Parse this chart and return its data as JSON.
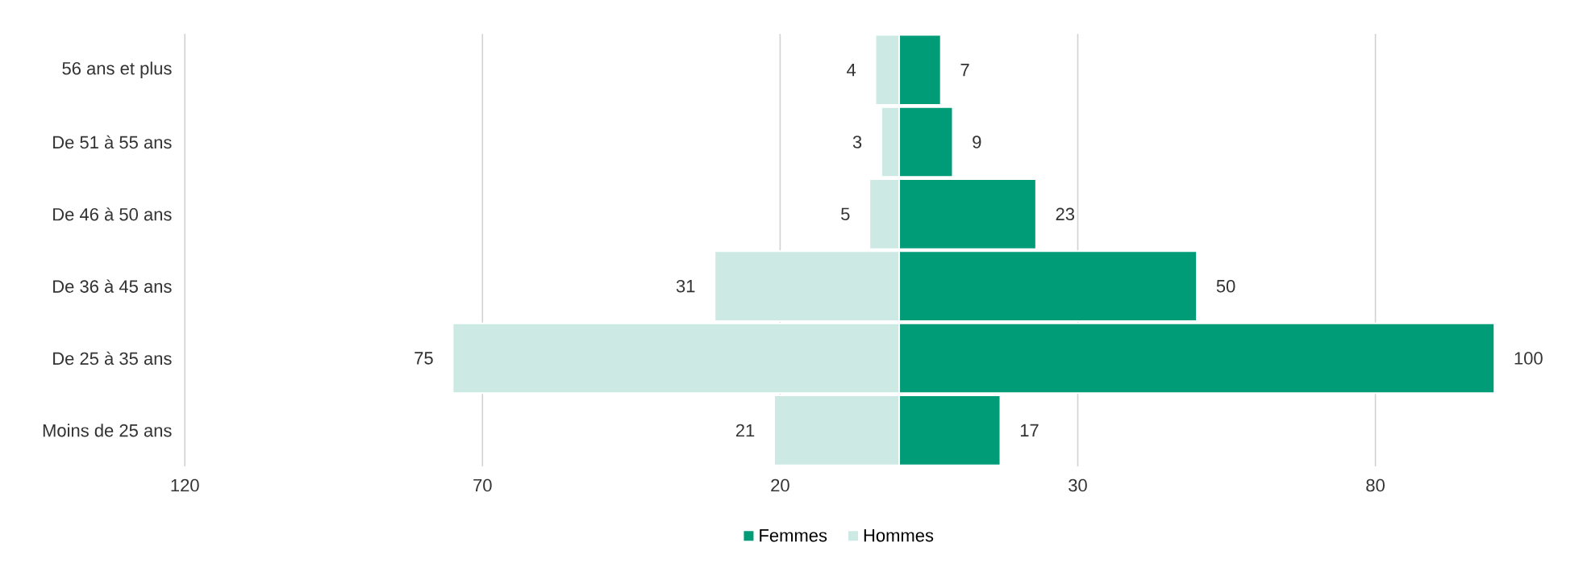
{
  "chart_data": {
    "type": "bar",
    "orientation": "horizontal",
    "categories": [
      "56 ans et plus",
      "De 51 à 55 ans",
      "De 46 à 50 ans",
      "De 36 à 45 ans",
      "De 25 à 35 ans",
      "Moins de 25 ans"
    ],
    "series": [
      {
        "name": "Femmes",
        "color": "#009b77",
        "values": [
          7,
          9,
          23,
          50,
          100,
          17
        ],
        "base": [
          0,
          0,
          0,
          0,
          0,
          0
        ],
        "value_labels": [
          "7",
          "9",
          "23",
          "50",
          "100",
          "17"
        ]
      },
      {
        "name": "Hommes",
        "color": "#cceae3",
        "values": [
          4,
          3,
          5,
          31,
          75,
          21
        ],
        "base": [
          -4,
          -3,
          -5,
          -31,
          -75,
          -21
        ],
        "value_labels": [
          "4",
          "3",
          "5",
          "31",
          "75",
          "21"
        ]
      }
    ],
    "xlim": [
      -120,
      100
    ],
    "xticks": [
      {
        "value": -120,
        "label": "120"
      },
      {
        "value": -70,
        "label": "70"
      },
      {
        "value": -20,
        "label": "20"
      },
      30,
      80
    ],
    "grid": "x",
    "legend": "bottom"
  }
}
